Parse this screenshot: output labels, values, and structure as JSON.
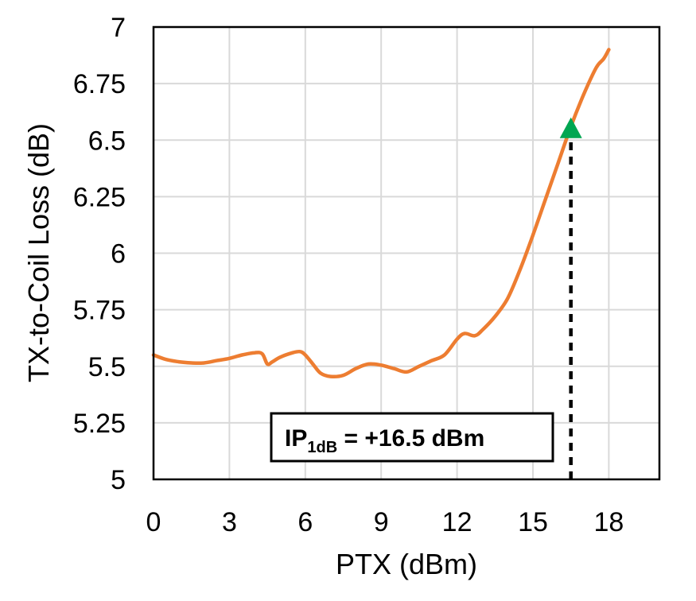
{
  "chart_data": {
    "type": "line",
    "title": "",
    "xlabel": "PTX (dBm)",
    "ylabel": "TX-to-Coil Loss (dB)",
    "xlim": [
      0,
      20
    ],
    "ylim": [
      5,
      7
    ],
    "xticks": [
      0,
      3,
      6,
      9,
      12,
      15,
      18
    ],
    "xtick_labels": [
      "0",
      "3",
      "6",
      "9",
      "12",
      "15",
      "18"
    ],
    "yticks": [
      5,
      5.25,
      5.5,
      5.75,
      6,
      6.25,
      6.5,
      6.75,
      7
    ],
    "ytick_labels": [
      "5",
      "5.25",
      "5.5",
      "5.75",
      "6",
      "6.25",
      "6.5",
      "6.75",
      "7"
    ],
    "grid": true,
    "series": [
      {
        "color": "#ED7D31",
        "x": [
          0,
          0.5,
          1,
          1.5,
          2,
          2.5,
          3,
          3.5,
          4,
          4.3,
          4.5,
          4.7,
          5,
          5.5,
          5.8,
          6,
          6.3,
          6.6,
          7,
          7.5,
          8,
          8.5,
          9,
          9.5,
          10,
          10.5,
          11,
          11.5,
          12,
          12.3,
          12.7,
          13,
          13.5,
          14,
          14.5,
          15,
          15.5,
          16,
          16.5,
          17,
          17.5,
          17.8,
          18
        ],
        "y": [
          5.55,
          5.53,
          5.52,
          5.515,
          5.515,
          5.525,
          5.535,
          5.55,
          5.56,
          5.555,
          5.51,
          5.52,
          5.54,
          5.56,
          5.565,
          5.55,
          5.51,
          5.47,
          5.455,
          5.46,
          5.49,
          5.51,
          5.505,
          5.49,
          5.475,
          5.5,
          5.525,
          5.55,
          5.62,
          5.645,
          5.635,
          5.66,
          5.72,
          5.8,
          5.93,
          6.08,
          6.24,
          6.4,
          6.56,
          6.7,
          6.82,
          6.86,
          6.9
        ]
      }
    ],
    "marker": {
      "x": 16.5,
      "y": 6.55,
      "shape": "triangle",
      "color": "#00A651"
    },
    "reference_line": {
      "x": 16.5,
      "y_from": 5,
      "y_to": 6.5,
      "style": "dashed",
      "color": "#000000"
    },
    "annotation": {
      "prefix": "IP",
      "subscript": "1dB",
      "suffix": " = +16.5 dBm"
    }
  }
}
